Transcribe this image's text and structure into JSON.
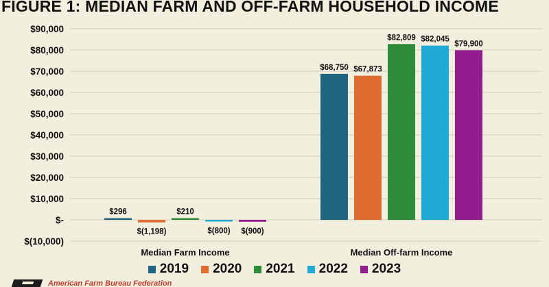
{
  "title": "FIGURE 1: MEDIAN FARM AND OFF-FARM HOUSEHOLD INCOME",
  "footer": {
    "org": "American Farm Bureau Federation"
  },
  "chart_data": {
    "type": "bar",
    "title": "FIGURE 1: MEDIAN FARM AND OFF-FARM HOUSEHOLD INCOME",
    "xlabel": "",
    "ylabel": "",
    "categories": [
      "Median Farm Income",
      "Median Off-farm Income"
    ],
    "ylim": [
      -10000,
      90000
    ],
    "yticks": [
      90000,
      80000,
      70000,
      60000,
      50000,
      40000,
      30000,
      20000,
      10000,
      0,
      -10000
    ],
    "ytick_labels": [
      "$90,000",
      "$80,000",
      "$70,000",
      "$60,000",
      "$50,000",
      "$40,000",
      "$30,000",
      "$20,000",
      "$10,000",
      "$-",
      "$(10,000)"
    ],
    "grid": true,
    "legend_position": "bottom",
    "series": [
      {
        "name": "2019",
        "color": "#1f6480",
        "values": [
          296,
          68750
        ],
        "labels": [
          "$296",
          "$68,750"
        ]
      },
      {
        "name": "2020",
        "color": "#e06c32",
        "values": [
          -1198,
          67873
        ],
        "labels": [
          "$(1,198)",
          "$67,873"
        ]
      },
      {
        "name": "2021",
        "color": "#2e8b3a",
        "values": [
          210,
          82809
        ],
        "labels": [
          "$210",
          "$82,809"
        ]
      },
      {
        "name": "2022",
        "color": "#1faad6",
        "values": [
          -800,
          82045
        ],
        "labels": [
          "$(800)",
          "$82,045"
        ]
      },
      {
        "name": "2023",
        "color": "#931d8e",
        "values": [
          -900,
          79900
        ],
        "labels": [
          "$(900)",
          "$79,900"
        ]
      }
    ]
  }
}
